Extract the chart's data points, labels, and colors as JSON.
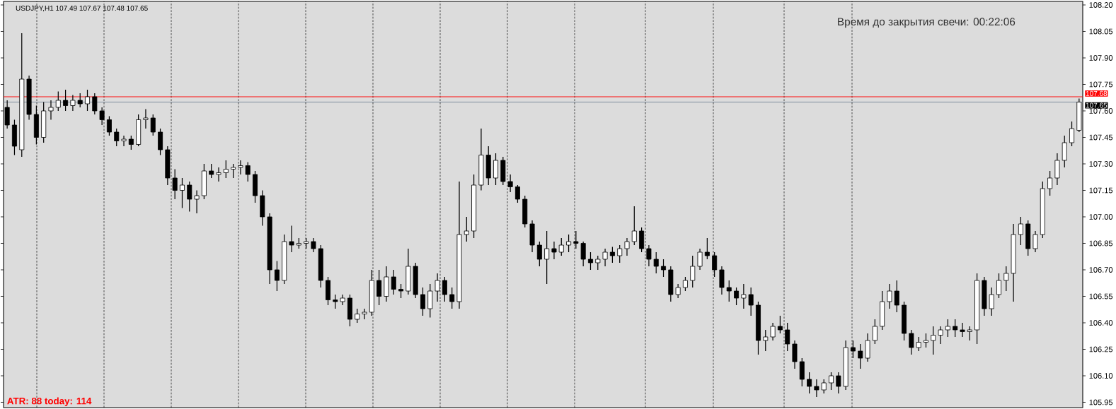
{
  "chart_data": {
    "type": "candlestick",
    "title": "USDJPY,H1  107.49 107.67 107.48 107.65",
    "annotations": [
      "Время до закрытия свечи: 00:22:06",
      "ATR: 88  today: 114"
    ],
    "categories": [
      null,
      null,
      null,
      null,
      null,
      null,
      null,
      null,
      null,
      null,
      null,
      null,
      null,
      null,
      null,
      null,
      null,
      null,
      null,
      null,
      null,
      null,
      null,
      null,
      null,
      null,
      null,
      null,
      null,
      null,
      null,
      null,
      null,
      null,
      null,
      null,
      null,
      null,
      null,
      null,
      null,
      null,
      null,
      null,
      null,
      null,
      null,
      null,
      null,
      null,
      null,
      null,
      null,
      null,
      null,
      null,
      null,
      null,
      null,
      null,
      null,
      null,
      null,
      null,
      null,
      null,
      null,
      null,
      null,
      null,
      null,
      null,
      null,
      null,
      null,
      null,
      null,
      null,
      null,
      null,
      null,
      null,
      null,
      null,
      null,
      null,
      null,
      null,
      null,
      null,
      null,
      null,
      null,
      null,
      null,
      null,
      null,
      null,
      null,
      null,
      null,
      null,
      null,
      null,
      null,
      null,
      null,
      null,
      null,
      null,
      null,
      null,
      null,
      null,
      null,
      null,
      null,
      null,
      null,
      null,
      null,
      null,
      null,
      null,
      null,
      null,
      null,
      null,
      null,
      null,
      null,
      null,
      null,
      null,
      null,
      null,
      null,
      null,
      null,
      null,
      null,
      null,
      null,
      null,
      null,
      null,
      null,
      null
    ],
    "ohlc": [
      [
        107.62,
        107.66,
        107.5,
        107.52
      ],
      [
        107.52,
        107.55,
        107.35,
        107.4
      ],
      [
        107.38,
        108.04,
        107.34,
        107.78
      ],
      [
        107.78,
        107.8,
        107.55,
        107.58
      ],
      [
        107.58,
        107.63,
        107.41,
        107.45
      ],
      [
        107.45,
        107.65,
        107.42,
        107.6
      ],
      [
        107.6,
        107.66,
        107.55,
        107.62
      ],
      [
        107.62,
        107.71,
        107.6,
        107.66
      ],
      [
        107.66,
        107.72,
        107.6,
        107.63
      ],
      [
        107.63,
        107.69,
        107.6,
        107.66
      ],
      [
        107.66,
        107.7,
        107.62,
        107.64
      ],
      [
        107.64,
        107.72,
        107.6,
        107.68
      ],
      [
        107.68,
        107.7,
        107.58,
        107.6
      ],
      [
        107.6,
        107.62,
        107.52,
        107.55
      ],
      [
        107.55,
        107.57,
        107.46,
        107.48
      ],
      [
        107.48,
        107.5,
        107.4,
        107.43
      ],
      [
        107.43,
        107.46,
        107.4,
        107.44
      ],
      [
        107.44,
        107.46,
        107.38,
        107.41
      ],
      [
        107.41,
        107.58,
        107.4,
        107.55
      ],
      [
        107.55,
        107.61,
        107.5,
        107.56
      ],
      [
        107.56,
        107.58,
        107.46,
        107.48
      ],
      [
        107.48,
        107.5,
        107.35,
        107.38
      ],
      [
        107.38,
        107.4,
        107.18,
        107.22
      ],
      [
        107.22,
        107.27,
        107.1,
        107.15
      ],
      [
        107.15,
        107.22,
        107.05,
        107.18
      ],
      [
        107.18,
        107.2,
        107.03,
        107.1
      ],
      [
        107.1,
        107.15,
        107.02,
        107.12
      ],
      [
        107.12,
        107.3,
        107.1,
        107.26
      ],
      [
        107.26,
        107.3,
        107.22,
        107.24
      ],
      [
        107.24,
        107.28,
        107.2,
        107.25
      ],
      [
        107.25,
        107.32,
        107.22,
        107.27
      ],
      [
        107.27,
        107.3,
        107.22,
        107.28
      ],
      [
        107.28,
        107.32,
        107.24,
        107.29
      ],
      [
        107.29,
        107.31,
        107.2,
        107.24
      ],
      [
        107.24,
        107.26,
        107.08,
        107.12
      ],
      [
        107.12,
        107.15,
        106.95,
        107.0
      ],
      [
        107.0,
        107.02,
        106.62,
        106.7
      ],
      [
        106.7,
        106.75,
        106.58,
        106.64
      ],
      [
        106.64,
        106.9,
        106.62,
        106.86
      ],
      [
        106.86,
        106.95,
        106.8,
        106.84
      ],
      [
        106.84,
        106.88,
        106.82,
        106.85
      ],
      [
        106.85,
        106.88,
        106.82,
        106.86
      ],
      [
        106.86,
        106.88,
        106.8,
        106.82
      ],
      [
        106.82,
        106.84,
        106.6,
        106.64
      ],
      [
        106.64,
        106.66,
        106.5,
        106.53
      ],
      [
        106.53,
        106.56,
        106.48,
        106.52
      ],
      [
        106.52,
        106.56,
        106.5,
        106.54
      ],
      [
        106.54,
        106.56,
        106.38,
        106.42
      ],
      [
        106.42,
        106.48,
        106.4,
        106.45
      ],
      [
        106.45,
        106.48,
        106.42,
        106.46
      ],
      [
        106.46,
        106.7,
        106.44,
        106.64
      ],
      [
        106.64,
        106.7,
        106.5,
        106.55
      ],
      [
        106.55,
        106.72,
        106.52,
        106.66
      ],
      [
        106.66,
        106.7,
        106.56,
        106.59
      ],
      [
        106.59,
        106.62,
        106.54,
        106.58
      ],
      [
        106.58,
        106.82,
        106.56,
        106.72
      ],
      [
        106.72,
        106.74,
        106.54,
        106.56
      ],
      [
        106.56,
        106.6,
        106.44,
        106.48
      ],
      [
        106.48,
        106.62,
        106.43,
        106.58
      ],
      [
        106.58,
        106.68,
        106.52,
        106.64
      ],
      [
        106.64,
        106.66,
        106.52,
        106.56
      ],
      [
        106.56,
        106.6,
        106.48,
        106.52
      ],
      [
        106.52,
        107.2,
        106.48,
        106.9
      ],
      [
        106.9,
        107.0,
        106.86,
        106.92
      ],
      [
        106.92,
        107.24,
        106.88,
        107.18
      ],
      [
        107.18,
        107.5,
        107.15,
        107.35
      ],
      [
        107.35,
        107.4,
        107.18,
        107.22
      ],
      [
        107.22,
        107.36,
        107.18,
        107.32
      ],
      [
        107.32,
        107.34,
        107.18,
        107.2
      ],
      [
        107.2,
        107.24,
        107.14,
        107.17
      ],
      [
        107.17,
        107.18,
        107.08,
        107.1
      ],
      [
        107.1,
        107.12,
        106.94,
        106.96
      ],
      [
        106.96,
        106.98,
        106.8,
        106.84
      ],
      [
        106.84,
        106.86,
        106.72,
        106.76
      ],
      [
        106.76,
        106.92,
        106.62,
        106.82
      ],
      [
        106.82,
        106.86,
        106.76,
        106.8
      ],
      [
        106.8,
        106.88,
        106.78,
        106.84
      ],
      [
        106.84,
        106.9,
        106.8,
        106.86
      ],
      [
        106.86,
        106.92,
        106.82,
        106.85
      ],
      [
        106.85,
        106.86,
        106.72,
        106.76
      ],
      [
        106.76,
        106.8,
        106.7,
        106.74
      ],
      [
        106.74,
        106.78,
        106.7,
        106.76
      ],
      [
        106.76,
        106.82,
        106.72,
        106.8
      ],
      [
        106.8,
        106.83,
        106.74,
        106.78
      ],
      [
        106.78,
        106.84,
        106.74,
        106.82
      ],
      [
        106.82,
        106.88,
        106.78,
        106.86
      ],
      [
        106.86,
        107.06,
        106.84,
        106.92
      ],
      [
        106.92,
        106.94,
        106.8,
        106.82
      ],
      [
        106.82,
        106.84,
        106.72,
        106.76
      ],
      [
        106.76,
        106.8,
        106.68,
        106.72
      ],
      [
        106.72,
        106.76,
        106.66,
        106.7
      ],
      [
        106.7,
        106.72,
        106.52,
        106.56
      ],
      [
        106.56,
        106.62,
        106.54,
        106.6
      ],
      [
        106.6,
        106.66,
        106.58,
        106.64
      ],
      [
        106.64,
        106.78,
        106.6,
        106.72
      ],
      [
        106.72,
        106.82,
        106.7,
        106.8
      ],
      [
        106.8,
        106.88,
        106.76,
        106.78
      ],
      [
        106.78,
        106.8,
        106.66,
        106.7
      ],
      [
        106.7,
        106.72,
        106.56,
        106.6
      ],
      [
        106.6,
        106.64,
        106.52,
        106.58
      ],
      [
        106.58,
        106.6,
        106.5,
        106.54
      ],
      [
        106.54,
        106.62,
        106.48,
        106.56
      ],
      [
        106.56,
        106.6,
        106.44,
        106.5
      ],
      [
        106.5,
        106.52,
        106.22,
        106.3
      ],
      [
        106.3,
        106.36,
        106.24,
        106.32
      ],
      [
        106.32,
        106.4,
        106.3,
        106.38
      ],
      [
        106.38,
        106.44,
        106.34,
        106.36
      ],
      [
        106.36,
        106.4,
        106.24,
        106.28
      ],
      [
        106.28,
        106.3,
        106.14,
        106.18
      ],
      [
        106.18,
        106.2,
        106.04,
        106.08
      ],
      [
        106.08,
        106.12,
        106.0,
        106.04
      ],
      [
        106.04,
        106.08,
        105.98,
        106.02
      ],
      [
        106.02,
        106.08,
        106.0,
        106.06
      ],
      [
        106.06,
        106.12,
        106.02,
        106.1
      ],
      [
        106.1,
        106.12,
        106.0,
        106.04
      ],
      [
        106.04,
        106.3,
        106.02,
        106.26
      ],
      [
        106.26,
        106.3,
        106.2,
        106.24
      ],
      [
        106.24,
        106.28,
        106.14,
        106.2
      ],
      [
        106.2,
        106.34,
        106.18,
        106.3
      ],
      [
        106.3,
        106.42,
        106.28,
        106.38
      ],
      [
        106.38,
        106.58,
        106.36,
        106.52
      ],
      [
        106.52,
        106.62,
        106.48,
        106.58
      ],
      [
        106.58,
        106.64,
        106.46,
        106.5
      ],
      [
        106.5,
        106.52,
        106.3,
        106.34
      ],
      [
        106.34,
        106.36,
        106.22,
        106.26
      ],
      [
        106.26,
        106.32,
        106.24,
        106.29
      ],
      [
        106.29,
        106.34,
        106.26,
        106.3
      ],
      [
        106.3,
        106.38,
        106.22,
        106.33
      ],
      [
        106.33,
        106.38,
        106.28,
        106.36
      ],
      [
        106.36,
        106.42,
        106.32,
        106.38
      ],
      [
        106.38,
        106.42,
        106.32,
        106.36
      ],
      [
        106.36,
        106.4,
        106.32,
        106.35
      ],
      [
        106.35,
        106.38,
        106.3,
        106.36
      ],
      [
        106.36,
        106.68,
        106.28,
        106.64
      ],
      [
        106.64,
        106.66,
        106.44,
        106.48
      ],
      [
        106.48,
        106.6,
        106.44,
        106.56
      ],
      [
        106.56,
        106.68,
        106.54,
        106.64
      ],
      [
        106.64,
        106.72,
        106.58,
        106.68
      ],
      [
        106.68,
        106.96,
        106.52,
        106.9
      ],
      [
        106.9,
        107.0,
        106.84,
        106.96
      ],
      [
        106.96,
        106.98,
        106.78,
        106.82
      ],
      [
        106.82,
        106.92,
        106.8,
        106.9
      ],
      [
        106.9,
        107.2,
        106.88,
        107.16
      ],
      [
        107.16,
        107.26,
        107.12,
        107.22
      ],
      [
        107.22,
        107.36,
        107.18,
        107.32
      ],
      [
        107.32,
        107.46,
        107.28,
        107.42
      ],
      [
        107.42,
        107.54,
        107.4,
        107.5
      ],
      [
        107.49,
        107.67,
        107.48,
        107.65
      ]
    ],
    "ref_lines": [
      {
        "axis": "y",
        "value": 107.68,
        "label": "107.68",
        "color": "#ff0000"
      },
      {
        "axis": "y",
        "value": 107.65,
        "label": "107.65",
        "color": "#778899"
      }
    ],
    "ylim": [
      105.92,
      108.22
    ],
    "yticks": [
      {
        "value": 105.95,
        "label": "105.95"
      },
      {
        "value": 106.1,
        "label": "106.10"
      },
      {
        "value": 106.25,
        "label": "106.25"
      },
      {
        "value": 106.4,
        "label": "106.40"
      },
      {
        "value": 106.55,
        "label": "106.55"
      },
      {
        "value": 106.7,
        "label": "106.70"
      },
      {
        "value": 106.85,
        "label": "106.85"
      },
      {
        "value": 107.0,
        "label": "107.00"
      },
      {
        "value": 107.15,
        "label": "107.15"
      },
      {
        "value": 107.3,
        "label": "107.30"
      },
      {
        "value": 107.45,
        "label": "107.45"
      },
      {
        "value": 107.6,
        "label": "107.60"
      },
      {
        "value": 107.75,
        "label": "107.75"
      },
      {
        "value": 107.9,
        "label": "107.90"
      },
      {
        "value": 108.05,
        "label": "108.05"
      },
      {
        "value": 108.2,
        "label": "108.20"
      }
    ],
    "tick_labels": "y"
  }
}
